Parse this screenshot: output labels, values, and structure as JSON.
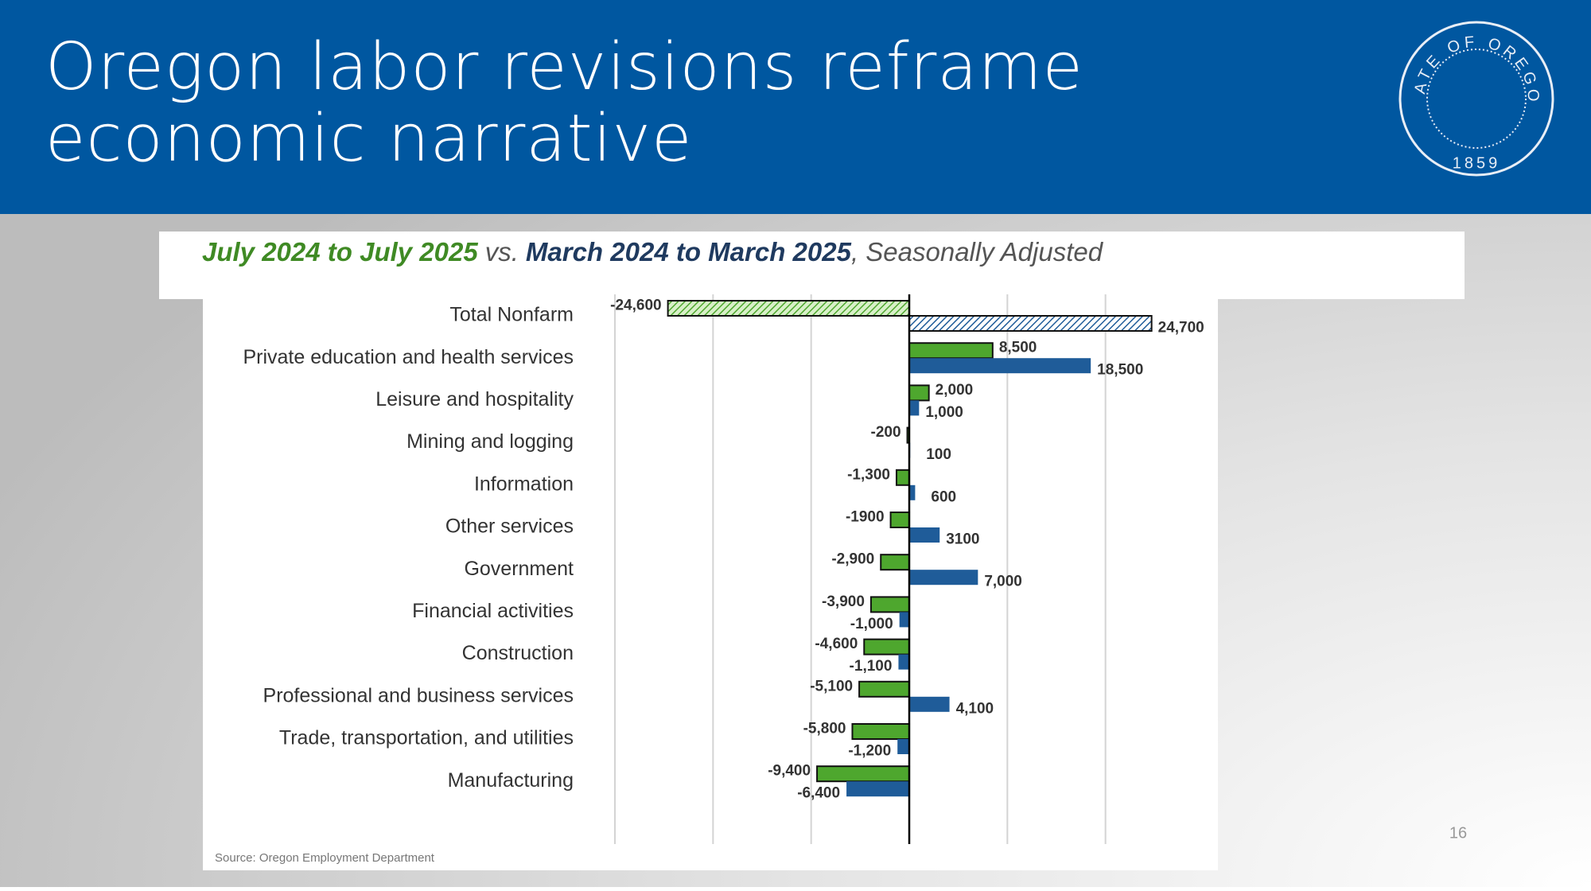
{
  "header": {
    "title": "Oregon labor revisions reframe economic narrative",
    "seal_text": "STATE OF OREGON",
    "seal_year": "1859"
  },
  "page_number": "16",
  "chart_data": {
    "type": "hbar",
    "title_connector": "vs.",
    "title_suffix": ", Seasonally Adjusted",
    "source": "Source: Oregon Employment Department",
    "categories": [
      "Total Nonfarm",
      "Private education and health services",
      "Leisure and hospitality",
      "Mining and logging",
      "Information",
      "Other services",
      "Government",
      "Financial activities",
      "Construction",
      "Professional and business services",
      "Trade, transportation, and utilities",
      "Manufacturing"
    ],
    "series": [
      {
        "name": "July 2024 to July 2025",
        "color": "#4ea72e",
        "values": [
          -24600,
          8500,
          2000,
          -200,
          -1300,
          -1900,
          -2900,
          -3900,
          -4600,
          -5100,
          -5800,
          -9400
        ],
        "value_labels": [
          "-24,600",
          "8,500",
          "2,000",
          "-200",
          "-1,300",
          "-1900",
          "-2,900",
          "-3,900",
          "-4,600",
          "-5,100",
          "-5,800",
          "-9,400"
        ]
      },
      {
        "name": "March 2024 to March 2025",
        "color": "#1f5c99",
        "values": [
          24700,
          18500,
          1000,
          100,
          600,
          3100,
          7000,
          -1000,
          -1100,
          4100,
          -1200,
          -6400
        ],
        "value_labels": [
          "24,700",
          "18,500",
          "1,000",
          "100",
          "600",
          "3100",
          "7,000",
          "-1,000",
          "-1,100",
          "4,100",
          "-1,200",
          "-6,400"
        ]
      }
    ],
    "hatched_categories": [
      0
    ],
    "xlim": [
      -30000,
      30000
    ],
    "xticks": [
      -30000,
      -20000,
      -10000,
      0,
      10000,
      20000
    ],
    "grid": true
  }
}
